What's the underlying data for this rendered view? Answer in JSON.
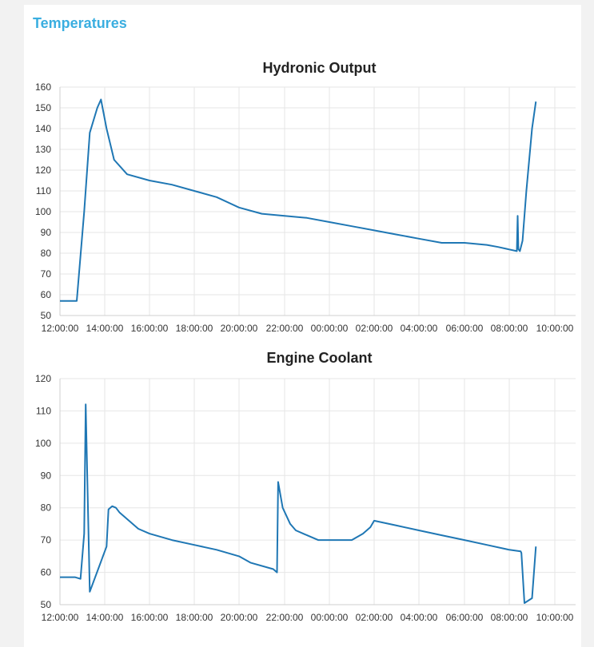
{
  "card": {
    "title": "Temperatures"
  },
  "chart_data": [
    {
      "type": "line",
      "title": "Hydronic Output",
      "xlabel": "",
      "ylabel": "",
      "ylim": [
        50,
        160
      ],
      "yticks": [
        50,
        60,
        70,
        80,
        90,
        100,
        110,
        120,
        130,
        140,
        150,
        160
      ],
      "x_start": "12:00:00",
      "xticks": [
        "12:00:00",
        "14:00:00",
        "16:00:00",
        "18:00:00",
        "20:00:00",
        "22:00:00",
        "00:00:00",
        "02:00:00",
        "04:00:00",
        "06:00:00",
        "08:00:00",
        "10:00:00"
      ],
      "grid": true,
      "color": "#1f77b4",
      "series": [
        {
          "x": [
            "12:00:00",
            "12:45:00",
            "13:05:00",
            "13:20:00",
            "13:40:00",
            "13:50:00",
            "14:05:00",
            "14:25:00",
            "15:00:00",
            "16:00:00",
            "17:00:00",
            "18:00:00",
            "19:00:00",
            "20:00:00",
            "21:00:00",
            "22:00:00",
            "23:00:00",
            "00:00:00",
            "01:00:00",
            "02:00:00",
            "03:00:00",
            "04:00:00",
            "05:00:00",
            "06:00:00",
            "07:00:00",
            "07:30:00",
            "08:20:00",
            "08:22:00",
            "08:24:00",
            "08:28:00",
            "08:35:00",
            "08:45:00",
            "09:00:00",
            "09:10:00"
          ],
          "values": [
            57,
            57,
            100,
            138,
            150,
            154,
            140,
            125,
            118,
            115,
            113,
            110,
            107,
            102,
            99,
            98,
            97,
            95,
            93,
            91,
            89,
            87,
            85,
            85,
            84,
            83,
            81,
            98,
            82,
            81,
            86,
            110,
            140,
            153
          ]
        }
      ]
    },
    {
      "type": "line",
      "title": "Engine Coolant",
      "xlabel": "",
      "ylabel": "",
      "ylim": [
        50,
        120
      ],
      "yticks": [
        50,
        60,
        70,
        80,
        90,
        100,
        110,
        120
      ],
      "x_start": "12:00:00",
      "xticks": [
        "12:00:00",
        "14:00:00",
        "16:00:00",
        "18:00:00",
        "20:00:00",
        "22:00:00",
        "00:00:00",
        "02:00:00",
        "04:00:00",
        "06:00:00",
        "08:00:00",
        "10:00:00"
      ],
      "grid": true,
      "color": "#1f77b4",
      "series": [
        {
          "x": [
            "12:00:00",
            "12:40:00",
            "12:55:00",
            "13:05:00",
            "13:09:00",
            "13:20:00",
            "14:05:00",
            "14:10:00",
            "14:20:00",
            "14:30:00",
            "14:40:00",
            "15:30:00",
            "16:00:00",
            "17:00:00",
            "18:00:00",
            "19:00:00",
            "20:00:00",
            "20:30:00",
            "21:30:00",
            "21:40:00",
            "21:43:00",
            "21:55:00",
            "22:15:00",
            "22:30:00",
            "23:00:00",
            "23:30:00",
            "00:30:00",
            "01:00:00",
            "01:30:00",
            "01:50:00",
            "02:00:00",
            "03:00:00",
            "04:00:00",
            "05:00:00",
            "06:00:00",
            "07:00:00",
            "08:00:00",
            "08:30:00",
            "08:32:00",
            "08:40:00",
            "09:00:00",
            "09:10:00"
          ],
          "values": [
            58.5,
            58.5,
            58,
            72,
            112,
            54,
            68,
            79.5,
            80.5,
            80,
            78.5,
            73.5,
            72,
            70,
            68.5,
            67,
            65,
            63,
            61,
            60,
            88,
            80,
            75,
            73,
            71.5,
            70,
            70,
            70,
            72,
            74,
            76,
            74.5,
            73,
            71.5,
            70,
            68.5,
            67,
            66.5,
            66,
            50.5,
            52,
            68
          ]
        }
      ]
    }
  ]
}
